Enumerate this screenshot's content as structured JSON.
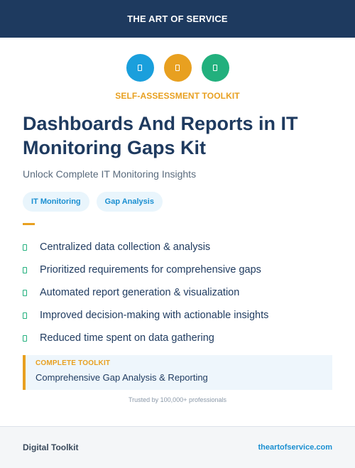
{
  "header": {
    "brand": "THE ART OF SERVICE"
  },
  "icons": [
    {
      "name": "document-icon",
      "color": "#1a9fdc"
    },
    {
      "name": "document-icon",
      "color": "#e8a020"
    },
    {
      "name": "document-icon",
      "color": "#22b07d"
    }
  ],
  "hero": {
    "eyebrow": "SELF-ASSESSMENT TOOLKIT",
    "title": "Dashboards And Reports in IT Monitoring Gaps Kit",
    "subtitle": "Unlock Complete IT Monitoring Insights"
  },
  "tags": [
    "IT Monitoring",
    "Gap Analysis"
  ],
  "features": [
    "Centralized data collection & analysis",
    "Prioritized requirements for comprehensive gaps",
    "Automated report generation & visualization",
    "Improved decision-making with actionable insights",
    "Reduced time spent on data gathering"
  ],
  "callout": {
    "label": "COMPLETE TOOLKIT",
    "text": "Comprehensive Gap Analysis & Reporting"
  },
  "trusted": "Trusted by 100,000+ professionals",
  "footer": {
    "left": "Digital Toolkit",
    "right": "theartofservice.com"
  },
  "colors": {
    "navy": "#1e3a5f",
    "accent": "#e8a020",
    "blue": "#1a8fd1",
    "green": "#22b07d"
  }
}
